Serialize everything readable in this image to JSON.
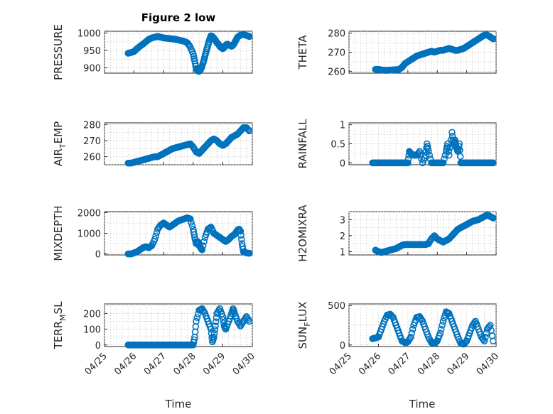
{
  "figure": {
    "title": "Figure 2 low",
    "xlabel": "Time",
    "x_tick_labels": [
      "04/25",
      "04/26",
      "04/27",
      "04/28",
      "04/29",
      "04/30"
    ],
    "marker_color": "#0072BD"
  },
  "chart_data": [
    {
      "type": "scatter",
      "ylabel_main": "PRESSURE",
      "ylabel_sub": "",
      "ylabel_tail": "",
      "title": "Figure 2 low",
      "xlabel": "",
      "xlim": [
        "04/25",
        "04/30"
      ],
      "ylim": [
        885,
        1005
      ],
      "yticks": [
        900,
        950,
        1000
      ],
      "grid": true,
      "x": [
        0.8,
        0.9,
        1.0,
        1.1,
        1.2,
        1.3,
        1.4,
        1.5,
        1.6,
        1.7,
        1.8,
        1.9,
        2.0,
        2.1,
        2.2,
        2.3,
        2.4,
        2.5,
        2.6,
        2.7,
        2.8,
        2.9,
        3.0,
        3.05,
        3.1,
        3.15,
        3.2,
        3.25,
        3.3,
        3.35,
        3.4,
        3.45,
        3.5,
        3.55,
        3.6,
        3.65,
        3.7,
        3.75,
        3.8,
        3.85,
        3.9,
        3.95,
        4.0,
        4.05,
        4.1,
        4.15,
        4.2,
        4.25,
        4.3,
        4.35,
        4.4,
        4.45,
        4.5,
        4.6,
        4.7,
        4.8,
        4.9
      ],
      "y": [
        942,
        944,
        947,
        955,
        962,
        968,
        975,
        982,
        986,
        988,
        990,
        988,
        986,
        985,
        984,
        983,
        982,
        980,
        978,
        976,
        972,
        960,
        940,
        920,
        898,
        892,
        890,
        895,
        905,
        918,
        935,
        950,
        965,
        980,
        992,
        990,
        985,
        980,
        972,
        968,
        962,
        958,
        955,
        958,
        965,
        968,
        966,
        964,
        962,
        965,
        972,
        980,
        988,
        994,
        996,
        993,
        990
      ]
    },
    {
      "type": "scatter",
      "ylabel_main": "THETA",
      "ylabel_sub": "",
      "ylabel_tail": "",
      "title": "",
      "xlabel": "",
      "xlim": [
        "04/25",
        "04/30"
      ],
      "ylim": [
        259,
        281
      ],
      "yticks": [
        260,
        270,
        280
      ],
      "grid": true,
      "x": [
        0.9,
        1.0,
        1.1,
        1.2,
        1.3,
        1.4,
        1.5,
        1.6,
        1.7,
        1.8,
        1.9,
        2.0,
        2.1,
        2.2,
        2.3,
        2.4,
        2.5,
        2.6,
        2.7,
        2.8,
        2.9,
        3.0,
        3.1,
        3.2,
        3.3,
        3.4,
        3.5,
        3.6,
        3.7,
        3.8,
        3.9,
        4.0,
        4.1,
        4.2,
        4.3,
        4.4,
        4.5,
        4.6,
        4.7,
        4.8,
        4.9
      ],
      "y": [
        261,
        261,
        260.7,
        260.5,
        260.5,
        260.6,
        260.7,
        260.8,
        261,
        262,
        264,
        265,
        266,
        267,
        268,
        268.5,
        269,
        269.5,
        270,
        270.5,
        270,
        270.5,
        271,
        271,
        271.5,
        272,
        271.5,
        271,
        271,
        271.5,
        272,
        273,
        274,
        275,
        276,
        277,
        278,
        279,
        279,
        278,
        277
      ]
    },
    {
      "type": "scatter",
      "ylabel_main": "AIR",
      "ylabel_sub": "T",
      "ylabel_tail": "EMP",
      "title": "",
      "xlabel": "",
      "xlim": [
        "04/25",
        "04/30"
      ],
      "ylim": [
        255,
        281
      ],
      "yticks": [
        260,
        270,
        280
      ],
      "grid": true,
      "x": [
        0.8,
        0.9,
        1.0,
        1.1,
        1.2,
        1.3,
        1.4,
        1.5,
        1.6,
        1.7,
        1.8,
        1.9,
        2.0,
        2.1,
        2.2,
        2.3,
        2.4,
        2.5,
        2.6,
        2.7,
        2.8,
        2.9,
        3.0,
        3.1,
        3.2,
        3.3,
        3.4,
        3.5,
        3.6,
        3.7,
        3.8,
        3.9,
        4.0,
        4.1,
        4.2,
        4.3,
        4.4,
        4.5,
        4.6,
        4.7,
        4.8,
        4.9
      ],
      "y": [
        256,
        256,
        256.5,
        257,
        257.5,
        258,
        258.5,
        259,
        259.5,
        260,
        260,
        261,
        262,
        263,
        264,
        265,
        265.5,
        266,
        266.5,
        267,
        267.5,
        268,
        266,
        263,
        262,
        264,
        266,
        268,
        270,
        271,
        270,
        268,
        267,
        268,
        270,
        272,
        273,
        274,
        276,
        278,
        278,
        276
      ]
    },
    {
      "type": "scatter",
      "ylabel_main": "RAINFALL",
      "ylabel_sub": "",
      "ylabel_tail": "",
      "title": "",
      "xlabel": "",
      "xlim": [
        "04/25",
        "04/30"
      ],
      "ylim": [
        -0.05,
        1.05
      ],
      "yticks": [
        0,
        0.5,
        1
      ],
      "yticklabels": [
        "0",
        "0.5",
        "1"
      ],
      "grid": true,
      "x": [
        0.8,
        0.9,
        1.0,
        1.1,
        1.2,
        1.3,
        1.4,
        1.5,
        1.6,
        1.7,
        1.8,
        1.9,
        2.0,
        2.05,
        2.1,
        2.2,
        2.3,
        2.4,
        2.5,
        2.6,
        2.65,
        2.7,
        2.8,
        2.9,
        3.0,
        3.1,
        3.2,
        3.3,
        3.35,
        3.4,
        3.5,
        3.55,
        3.6,
        3.65,
        3.7,
        3.75,
        3.8,
        3.9,
        4.0,
        4.1,
        4.2,
        4.3,
        4.4,
        4.5,
        4.6,
        4.7,
        4.8,
        4.9
      ],
      "y": [
        0,
        0,
        0,
        0,
        0,
        0,
        0,
        0,
        0,
        0,
        0,
        0,
        0,
        0.3,
        0.25,
        0.2,
        0.2,
        0.3,
        0,
        0.2,
        0.5,
        0.3,
        0,
        0,
        0,
        0,
        0,
        0.3,
        0.5,
        0.2,
        0.8,
        0.5,
        0.6,
        0.4,
        0.3,
        0.5,
        0,
        0,
        0,
        0,
        0,
        0,
        0,
        0,
        0,
        0,
        0,
        0
      ]
    },
    {
      "type": "scatter",
      "ylabel_main": "MIXDEPTH",
      "ylabel_sub": "",
      "ylabel_tail": "",
      "title": "",
      "xlabel": "",
      "xlim": [
        "04/25",
        "04/30"
      ],
      "ylim": [
        -50,
        2050
      ],
      "yticks": [
        0,
        1000,
        2000
      ],
      "grid": true,
      "x": [
        0.8,
        0.9,
        1.0,
        1.1,
        1.2,
        1.3,
        1.4,
        1.5,
        1.6,
        1.7,
        1.8,
        1.9,
        2.0,
        2.1,
        2.2,
        2.3,
        2.4,
        2.5,
        2.6,
        2.7,
        2.8,
        2.9,
        3.0,
        3.05,
        3.1,
        3.15,
        3.2,
        3.25,
        3.3,
        3.4,
        3.5,
        3.6,
        3.7,
        3.8,
        3.9,
        4.0,
        4.1,
        4.2,
        4.3,
        4.4,
        4.5,
        4.55,
        4.6,
        4.65,
        4.7,
        4.8,
        4.9
      ],
      "y": [
        0,
        0,
        50,
        100,
        200,
        300,
        350,
        300,
        400,
        700,
        1200,
        1400,
        1500,
        1400,
        1300,
        1400,
        1500,
        1600,
        1650,
        1700,
        1750,
        1700,
        1200,
        800,
        500,
        600,
        400,
        300,
        200,
        800,
        1200,
        1300,
        1000,
        900,
        800,
        700,
        600,
        700,
        850,
        950,
        1150,
        1200,
        1100,
        500,
        100,
        50,
        30
      ]
    },
    {
      "type": "scatter",
      "ylabel_main": "H2OMIXRA",
      "ylabel_sub": "",
      "ylabel_tail": "",
      "title": "",
      "xlabel": "",
      "xlim": [
        "04/25",
        "04/30"
      ],
      "ylim": [
        0.8,
        3.5
      ],
      "yticks": [
        1,
        2,
        3
      ],
      "grid": true,
      "x": [
        0.9,
        1.0,
        1.1,
        1.2,
        1.3,
        1.4,
        1.5,
        1.6,
        1.7,
        1.8,
        1.9,
        2.0,
        2.1,
        2.2,
        2.3,
        2.4,
        2.5,
        2.6,
        2.7,
        2.8,
        2.9,
        3.0,
        3.1,
        3.2,
        3.3,
        3.4,
        3.5,
        3.6,
        3.7,
        3.8,
        3.9,
        4.0,
        4.1,
        4.2,
        4.3,
        4.4,
        4.5,
        4.6,
        4.7,
        4.8,
        4.9
      ],
      "y": [
        1.1,
        1.0,
        0.95,
        1.0,
        1.05,
        1.1,
        1.15,
        1.2,
        1.3,
        1.4,
        1.45,
        1.45,
        1.45,
        1.45,
        1.45,
        1.45,
        1.45,
        1.45,
        1.5,
        1.8,
        2.0,
        1.8,
        1.7,
        1.6,
        1.7,
        1.8,
        2.0,
        2.2,
        2.4,
        2.5,
        2.6,
        2.7,
        2.8,
        2.9,
        2.95,
        3.0,
        3.1,
        3.2,
        3.3,
        3.2,
        3.1
      ]
    },
    {
      "type": "scatter",
      "ylabel_main": "TERR",
      "ylabel_sub": "M",
      "ylabel_tail": "SL",
      "title": "",
      "xlabel": "",
      "xlim": [
        "04/25",
        "04/30"
      ],
      "ylim": [
        -10,
        260
      ],
      "yticks": [
        0,
        100,
        200
      ],
      "grid": true,
      "x": [
        0.8,
        0.9,
        1.0,
        1.1,
        1.2,
        1.3,
        1.4,
        1.5,
        1.6,
        1.7,
        1.8,
        1.9,
        2.0,
        2.1,
        2.2,
        2.3,
        2.4,
        2.5,
        2.6,
        2.7,
        2.8,
        2.9,
        3.0,
        3.05,
        3.1,
        3.2,
        3.3,
        3.4,
        3.5,
        3.6,
        3.65,
        3.7,
        3.75,
        3.8,
        3.9,
        4.0,
        4.05,
        4.1,
        4.2,
        4.3,
        4.35,
        4.4,
        4.5,
        4.6,
        4.7,
        4.8,
        4.9
      ],
      "y": [
        0,
        0,
        0,
        0,
        0,
        0,
        0,
        0,
        0,
        0,
        0,
        0,
        0,
        0,
        0,
        0,
        0,
        0,
        0,
        0,
        0,
        0,
        0,
        50,
        150,
        220,
        230,
        200,
        150,
        100,
        20,
        50,
        120,
        200,
        230,
        180,
        120,
        100,
        150,
        200,
        230,
        200,
        150,
        120,
        150,
        180,
        150
      ]
    },
    {
      "type": "scatter",
      "ylabel_main": "SUN",
      "ylabel_sub": "F",
      "ylabel_tail": "LUX",
      "title": "",
      "xlabel": "",
      "xlim": [
        "04/25",
        "04/30"
      ],
      "ylim": [
        -20,
        520
      ],
      "yticks": [
        0,
        500
      ],
      "grid": true,
      "x": [
        0.8,
        0.9,
        1.0,
        1.1,
        1.2,
        1.3,
        1.4,
        1.5,
        1.6,
        1.7,
        1.8,
        1.9,
        2.0,
        2.1,
        2.2,
        2.3,
        2.4,
        2.5,
        2.6,
        2.7,
        2.8,
        2.9,
        3.0,
        3.1,
        3.2,
        3.3,
        3.4,
        3.5,
        3.6,
        3.7,
        3.8,
        3.9,
        4.0,
        4.1,
        4.2,
        4.3,
        4.4,
        4.5,
        4.6,
        4.7,
        4.8,
        4.9
      ],
      "y": [
        80,
        90,
        100,
        200,
        300,
        380,
        390,
        350,
        250,
        150,
        50,
        30,
        40,
        100,
        250,
        350,
        360,
        300,
        200,
        100,
        30,
        20,
        50,
        150,
        300,
        420,
        400,
        300,
        200,
        100,
        20,
        10,
        50,
        150,
        250,
        300,
        200,
        100,
        50,
        200,
        250,
        50
      ]
    }
  ]
}
